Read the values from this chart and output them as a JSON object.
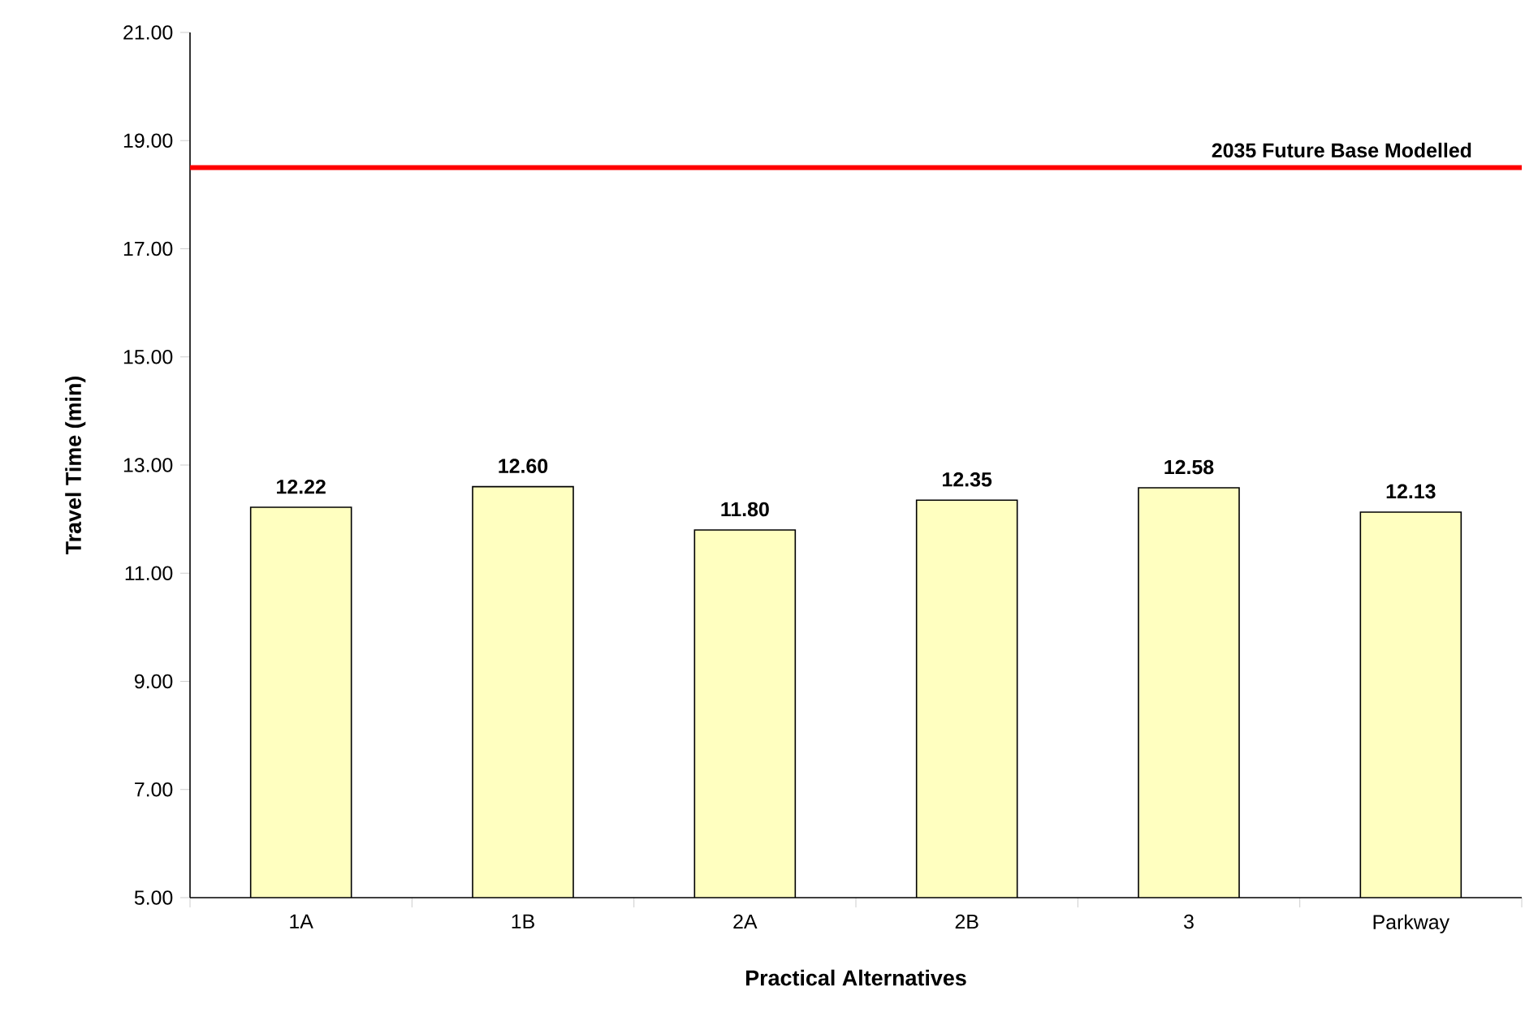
{
  "chart_data": {
    "type": "bar",
    "xlabel": "Practical Alternatives",
    "ylabel": "Travel Time (min)",
    "categories": [
      "1A",
      "1B",
      "2A",
      "2B",
      "3",
      "Parkway"
    ],
    "values": [
      12.22,
      12.6,
      11.8,
      12.35,
      12.58,
      12.13
    ],
    "value_labels": [
      "12.22",
      "12.60",
      "11.80",
      "12.35",
      "12.58",
      "12.13"
    ],
    "color": "#ffffc0",
    "ylim": [
      5,
      21
    ],
    "yticks": [
      {
        "value": 5,
        "label": "5.00"
      },
      {
        "value": 7,
        "label": "7.00"
      },
      {
        "value": 9,
        "label": "9.00"
      },
      {
        "value": 11,
        "label": "11.00"
      },
      {
        "value": 13,
        "label": "13.00"
      },
      {
        "value": 15,
        "label": "15.00"
      },
      {
        "value": 17,
        "label": "17.00"
      },
      {
        "value": 19,
        "label": "19.00"
      },
      {
        "value": 21,
        "label": "21.00"
      }
    ],
    "ref_lines": [
      {
        "axis": "y",
        "value": 18.5,
        "label": "2035 Future Base Modelled",
        "color": "#ff0000"
      }
    ],
    "grid": false
  }
}
